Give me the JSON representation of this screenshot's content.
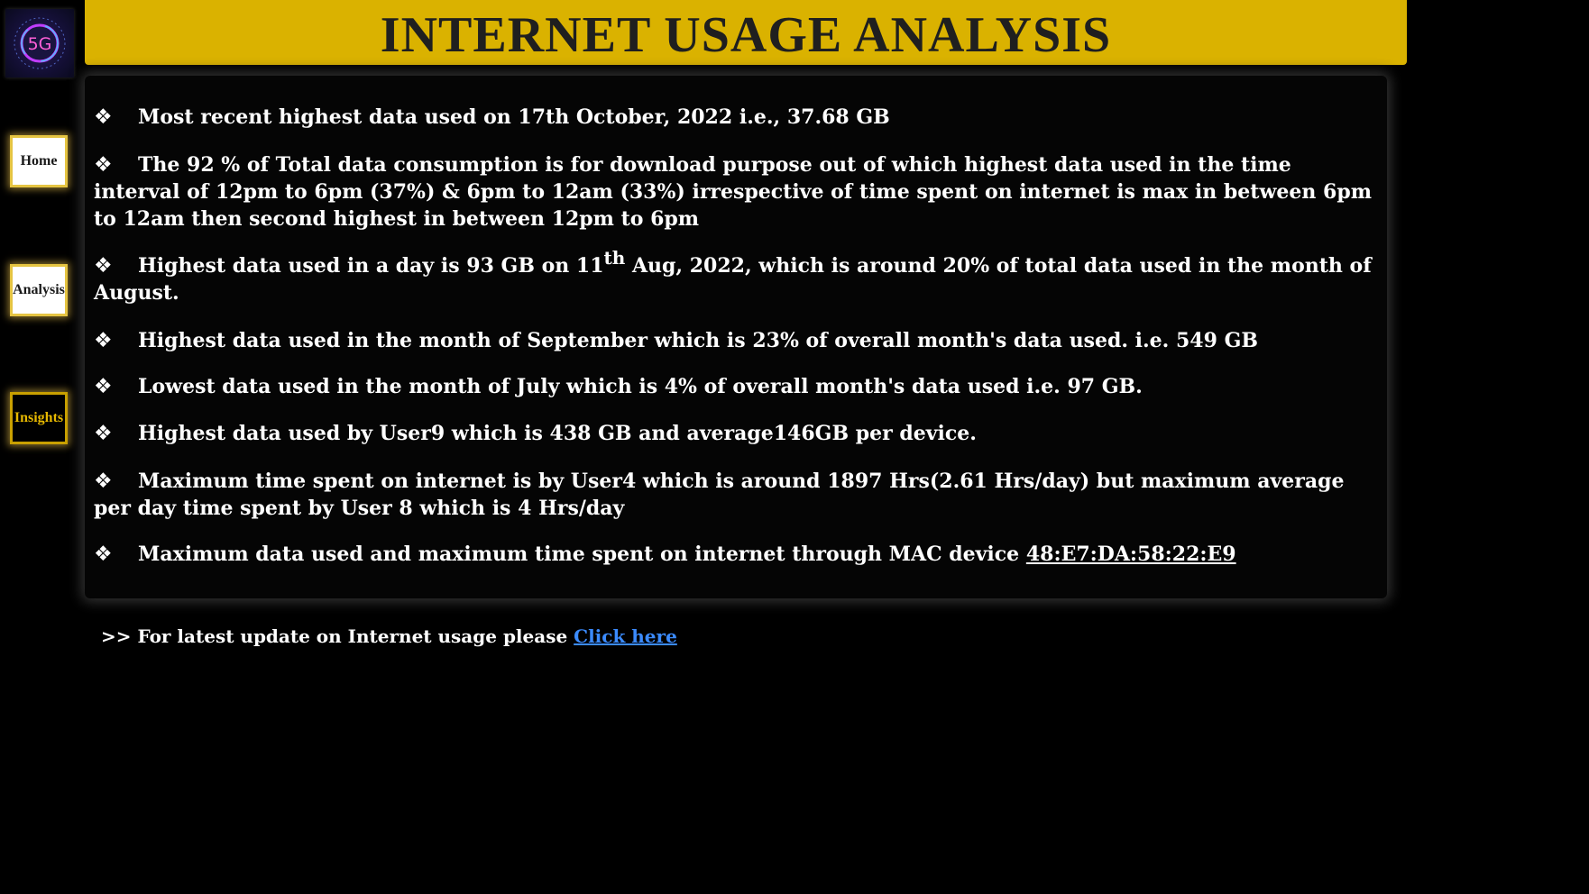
{
  "app": {
    "title": "INTERNET USAGE ANALYSIS",
    "logo_text": "5G"
  },
  "nav": {
    "items": [
      {
        "label": "Home",
        "active": false
      },
      {
        "label": "Analysis",
        "active": false
      },
      {
        "label": "Insights",
        "active": true
      }
    ]
  },
  "insights": {
    "bullet_icon": "❖",
    "items": [
      {
        "text": "Most recent highest data used on 17th October, 2022 i.e., 37.68 GB"
      },
      {
        "text": "The 92 % of Total data consumption is for download purpose out of which highest data used in the time interval of 12pm to 6pm (37%) & 6pm to 12am (33%) irrespective of time spent on internet is max in between 6pm to 12am then second highest in between 12pm to 6pm"
      },
      {
        "text_before": "Highest data used in a day is 93 GB on 11",
        "superscript": "th",
        "text_after": " Aug, 2022, which is around 20% of total data used in the month of August."
      },
      {
        "text": "Highest data used in the month of September which is 23% of overall month's data used. i.e. 549 GB"
      },
      {
        "text": "Lowest data used in the month of July which is 4% of overall month's data used i.e. 97 GB."
      },
      {
        "text": "Highest data used by User9 which is 438 GB and average146GB per device."
      },
      {
        "text": "Maximum time spent on internet is by User4 which is around 1897 Hrs(2.61 Hrs/day) but maximum average per day time spent by User 8 which is 4 Hrs/day"
      },
      {
        "text_before": "Maximum data used and maximum time spent on internet through MAC device ",
        "link": "48:E7:DA:58:22:E9"
      }
    ]
  },
  "footer": {
    "prefix": ">> For latest update on Internet usage please ",
    "link_label": "Click here"
  },
  "colors": {
    "title_bar": "#dab200",
    "background": "#000000",
    "active_nav_text": "#e6b800",
    "link": "#3b8bff"
  }
}
